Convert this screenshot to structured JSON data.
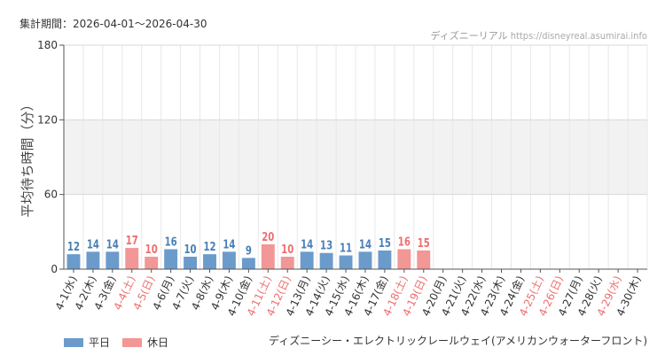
{
  "header": {
    "period_label": "集計期間：2026-04-01～2026-04-30",
    "site_name": "ディズニーリアル",
    "site_url": "https://disneyreal.asumirai.info"
  },
  "legend": {
    "weekday_label": "平日",
    "holiday_label": "休日"
  },
  "footer": {
    "attraction_name": "ディズニーシー・エレクトリックレールウェイ(アメリカンウォーターフロント)"
  },
  "colors": {
    "weekday": "#6b9bcb",
    "holiday": "#f29696",
    "weekday_text": "#4a7fb8",
    "holiday_text": "#ee6e6e",
    "band": "#f2f2f2"
  },
  "chart_data": {
    "type": "bar",
    "ylabel": "平均待ち時間（分）",
    "ylim": [
      0,
      180
    ],
    "yticks": [
      0,
      60,
      120,
      180
    ],
    "categories": [
      "4-1(水)",
      "4-2(木)",
      "4-3(金)",
      "4-4(土)",
      "4-5(日)",
      "4-6(月)",
      "4-7(火)",
      "4-8(水)",
      "4-9(木)",
      "4-10(金)",
      "4-11(土)",
      "4-12(日)",
      "4-13(月)",
      "4-14(火)",
      "4-15(水)",
      "4-16(木)",
      "4-17(金)",
      "4-18(土)",
      "4-19(日)",
      "4-20(月)",
      "4-21(火)",
      "4-22(水)",
      "4-23(木)",
      "4-24(金)",
      "4-25(土)",
      "4-26(日)",
      "4-27(月)",
      "4-28(火)",
      "4-29(水)",
      "4-30(木)"
    ],
    "values": [
      12,
      14,
      14,
      17,
      10,
      16,
      10,
      12,
      14,
      9,
      20,
      10,
      14,
      13,
      11,
      14,
      15,
      16,
      15,
      null,
      null,
      null,
      null,
      null,
      null,
      null,
      null,
      null,
      null,
      null
    ],
    "holiday": [
      false,
      false,
      false,
      true,
      true,
      false,
      false,
      false,
      false,
      false,
      true,
      true,
      false,
      false,
      false,
      false,
      false,
      true,
      true,
      false,
      false,
      false,
      false,
      false,
      true,
      true,
      false,
      false,
      true,
      false
    ]
  }
}
